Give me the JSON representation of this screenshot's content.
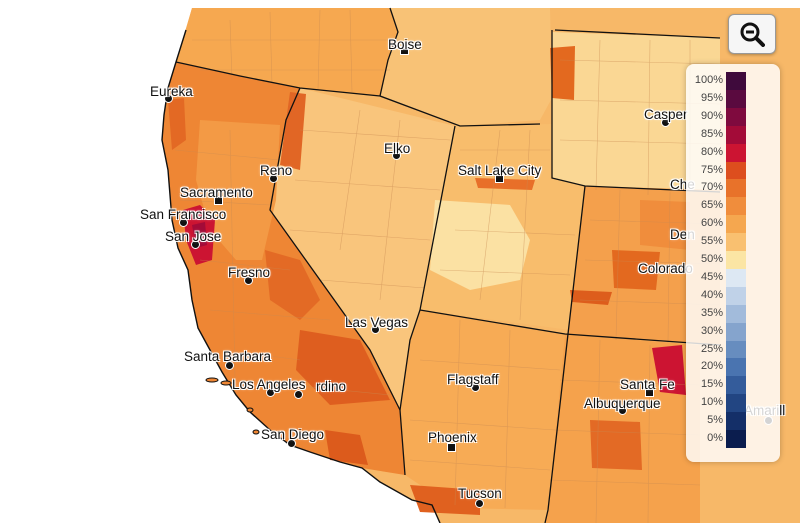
{
  "map": {
    "cities": [
      {
        "name": "Boise",
        "marker": "square"
      },
      {
        "name": "Eureka",
        "marker": "dot"
      },
      {
        "name": "Casper",
        "marker": "dot"
      },
      {
        "name": "Elko",
        "marker": "dot"
      },
      {
        "name": "Reno",
        "marker": "dot"
      },
      {
        "name": "Salt Lake City",
        "marker": "square"
      },
      {
        "name": "Sacramento",
        "marker": "square"
      },
      {
        "name": "San Francisco",
        "marker": "dot"
      },
      {
        "name": "San Jose",
        "marker": "dot"
      },
      {
        "name": "Fresno",
        "marker": "dot"
      },
      {
        "name": "Las Vegas",
        "marker": "dot"
      },
      {
        "name": "Santa Barbara",
        "marker": "dot"
      },
      {
        "name": "Los Angeles",
        "marker": "dot"
      },
      {
        "name": "rdino",
        "marker": "dot"
      },
      {
        "name": "San Diego",
        "marker": "dot"
      },
      {
        "name": "Flagstaff",
        "marker": "dot"
      },
      {
        "name": "Phoenix",
        "marker": "square"
      },
      {
        "name": "Tucson",
        "marker": "dot"
      },
      {
        "name": "Santa Fe",
        "marker": "square"
      },
      {
        "name": "Albuquerque",
        "marker": "dot"
      },
      {
        "name": "Che",
        "marker": "none"
      },
      {
        "name": "Den",
        "marker": "none"
      },
      {
        "name": "Colorado",
        "marker": "none"
      },
      {
        "name": "Amarill",
        "marker": "dot"
      }
    ]
  },
  "legend": {
    "items": [
      {
        "label": "100%",
        "color": "#3f0a3c"
      },
      {
        "label": "95%",
        "color": "#5a0a3f"
      },
      {
        "label": "90%",
        "color": "#7f0a3e"
      },
      {
        "label": "85%",
        "color": "#a30b38"
      },
      {
        "label": "80%",
        "color": "#cc1432"
      },
      {
        "label": "75%",
        "color": "#dd4e1e"
      },
      {
        "label": "70%",
        "color": "#e8722a"
      },
      {
        "label": "65%",
        "color": "#f08d3c"
      },
      {
        "label": "60%",
        "color": "#f5a74f"
      },
      {
        "label": "55%",
        "color": "#f9c070"
      },
      {
        "label": "50%",
        "color": "#fbe5a4"
      },
      {
        "label": "45%",
        "color": "#dde8f3"
      },
      {
        "label": "40%",
        "color": "#c0d2e8"
      },
      {
        "label": "35%",
        "color": "#a2bbdb"
      },
      {
        "label": "30%",
        "color": "#85a4cd"
      },
      {
        "label": "25%",
        "color": "#678dbf"
      },
      {
        "label": "20%",
        "color": "#4a74b0"
      },
      {
        "label": "15%",
        "color": "#345c9b"
      },
      {
        "label": "10%",
        "color": "#224582"
      },
      {
        "label": "5%",
        "color": "#142f68"
      },
      {
        "label": "0%",
        "color": "#0b1d4e"
      }
    ]
  },
  "controls": {
    "zoom_out_icon": "zoom-out-magnifier-icon"
  }
}
